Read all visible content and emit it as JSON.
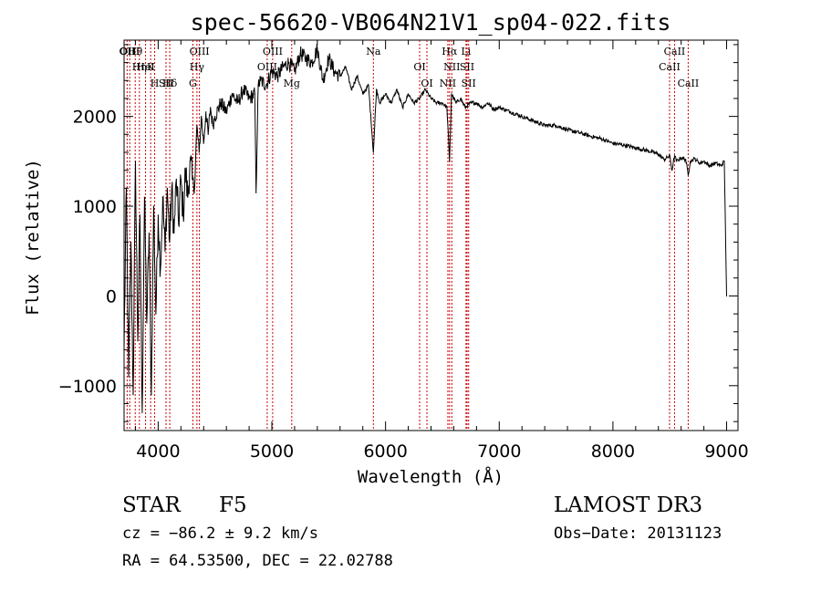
{
  "chart_data": {
    "type": "line",
    "title": "spec-56620-VB064N21V1_sp04-022.fits",
    "xlabel": "Wavelength (Å)",
    "ylabel": "Flux (relative)",
    "xlim": [
      3700,
      9100
    ],
    "ylim": [
      -1500,
      2850
    ],
    "xticks": [
      4000,
      5000,
      6000,
      7000,
      8000,
      9000
    ],
    "xtick_labels": [
      "4000",
      "5000",
      "6000",
      "7000",
      "8000",
      "9000"
    ],
    "yticks": [
      -1000,
      0,
      1000,
      2000
    ],
    "ytick_labels": [
      "−1000",
      "0",
      "1000",
      "2000"
    ],
    "line_color": "#000000",
    "marker_color": "#cc0000",
    "spectrum": {
      "name": "flux",
      "x": [
        3700,
        3720,
        3740,
        3760,
        3780,
        3800,
        3820,
        3840,
        3860,
        3880,
        3900,
        3920,
        3940,
        3960,
        3980,
        4000,
        4020,
        4040,
        4060,
        4080,
        4100,
        4120,
        4140,
        4160,
        4180,
        4200,
        4220,
        4240,
        4260,
        4280,
        4300,
        4320,
        4340,
        4360,
        4380,
        4400,
        4420,
        4440,
        4460,
        4480,
        4500,
        4550,
        4600,
        4650,
        4700,
        4750,
        4800,
        4850,
        4861,
        4880,
        4900,
        4950,
        5000,
        5050,
        5100,
        5150,
        5200,
        5250,
        5300,
        5350,
        5400,
        5450,
        5500,
        5550,
        5600,
        5650,
        5700,
        5750,
        5800,
        5850,
        5893,
        5920,
        5950,
        6000,
        6050,
        6100,
        6150,
        6200,
        6250,
        6300,
        6350,
        6400,
        6450,
        6500,
        6540,
        6563,
        6580,
        6620,
        6660,
        6700,
        6750,
        6800,
        6850,
        6900,
        6950,
        7000,
        7100,
        7200,
        7300,
        7400,
        7500,
        7600,
        7700,
        7800,
        7900,
        8000,
        8100,
        8200,
        8300,
        8400,
        8450,
        8500,
        8520,
        8542,
        8560,
        8600,
        8640,
        8662,
        8680,
        8720,
        8760,
        8800,
        8850,
        8900,
        8950,
        8980,
        9000
      ],
      "y": [
        -600,
        1200,
        -900,
        600,
        -1100,
        1500,
        -500,
        900,
        -1300,
        1100,
        -300,
        700,
        -1100,
        1000,
        -200,
        900,
        300,
        1100,
        500,
        1200,
        600,
        1200,
        700,
        1300,
        800,
        1300,
        900,
        1400,
        1100,
        1500,
        1300,
        1200,
        1900,
        1600,
        2000,
        1700,
        2050,
        1800,
        2100,
        1900,
        2000,
        2150,
        2050,
        2250,
        2150,
        2300,
        2200,
        2250,
        1150,
        2350,
        2400,
        2350,
        2500,
        2450,
        2550,
        2600,
        2500,
        2700,
        2650,
        2600,
        2750,
        2400,
        2650,
        2500,
        2450,
        2550,
        2300,
        2450,
        2250,
        2350,
        1600,
        2300,
        2150,
        2250,
        2150,
        2300,
        2100,
        2250,
        2150,
        2200,
        2300,
        2200,
        2150,
        2150,
        2100,
        1500,
        2250,
        2150,
        2200,
        2100,
        2150,
        2150,
        2100,
        2150,
        2080,
        2100,
        2050,
        2000,
        1950,
        1900,
        1900,
        1850,
        1820,
        1780,
        1750,
        1700,
        1680,
        1650,
        1620,
        1580,
        1520,
        1560,
        1400,
        1560,
        1500,
        1540,
        1520,
        1350,
        1500,
        1530,
        1480,
        1500,
        1450,
        1480,
        1450,
        1500,
        0
      ]
    },
    "lines": [
      {
        "label": "Hθ",
        "wavelength": 3798
      },
      {
        "label": "K",
        "wavelength": 3934
      },
      {
        "label": "Hδ",
        "wavelength": 4102
      },
      {
        "label": "OII",
        "wavelength": 3727
      },
      {
        "label": "HeI",
        "wavelength": 3889
      },
      {
        "label": "SII",
        "wavelength": 4069
      },
      {
        "label": "OIII",
        "wavelength": 3750
      },
      {
        "label": "Hη",
        "wavelength": 3835
      },
      {
        "label": "H",
        "wavelength": 3969
      },
      {
        "label": "OIII",
        "wavelength": 4363
      },
      {
        "label": "Hγ",
        "wavelength": 4341
      },
      {
        "label": "G",
        "wavelength": 4305
      },
      {
        "label": "OIII",
        "wavelength": 5007
      },
      {
        "label": "OIII",
        "wavelength": 4959
      },
      {
        "label": "Mg",
        "wavelength": 5175
      },
      {
        "label": "Na",
        "wavelength": 5893
      },
      {
        "label": "OI",
        "wavelength": 6300
      },
      {
        "label": "OI",
        "wavelength": 6364
      },
      {
        "label": "Hα",
        "wavelength": 6563
      },
      {
        "label": "SII",
        "wavelength": 6717
      },
      {
        "label": "NII",
        "wavelength": 6548
      },
      {
        "label": "Li",
        "wavelength": 6708
      },
      {
        "label": "NII",
        "wavelength": 6583
      },
      {
        "label": "SII",
        "wavelength": 6731
      },
      {
        "label": "CaII",
        "wavelength": 8542
      },
      {
        "label": "CaII",
        "wavelength": 8498
      },
      {
        "label": "CaII",
        "wavelength": 8662
      }
    ]
  },
  "info": {
    "object_class": "STAR",
    "subclass": "F5",
    "survey": "LAMOST DR3",
    "cz": "cz = −86.2 ± 9.2 km/s",
    "obs_date": "Obs−Date: 20131123",
    "coords": "RA =  64.53500, DEC =  22.02788"
  }
}
